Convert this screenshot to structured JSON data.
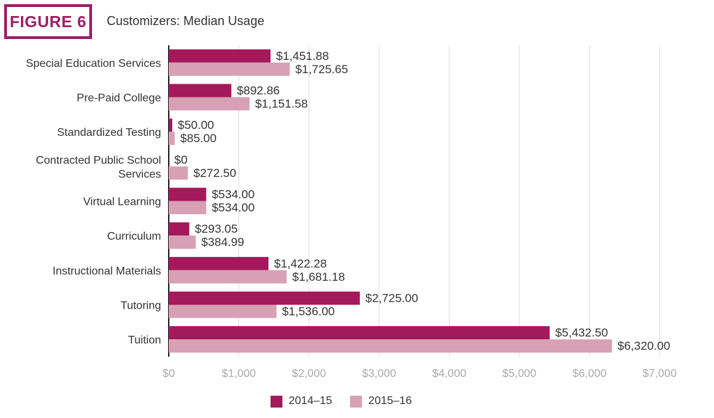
{
  "figure": {
    "label": "FIGURE 6",
    "title": "Customizers: Median Usage"
  },
  "colors": {
    "accent": "#9e1e64",
    "series_2014": "#a3195b",
    "series_2015": "#d8a0b4",
    "gridline": "#dddddd",
    "tick_text": "#aaaaaa"
  },
  "chart_data": {
    "type": "bar",
    "orientation": "horizontal",
    "title": "Customizers: Median Usage",
    "categories": [
      [
        "Special Education Services"
      ],
      [
        "Pre-Paid College"
      ],
      [
        "Standardized Testing"
      ],
      [
        "Contracted Public School",
        "Services"
      ],
      [
        "Virtual Learning"
      ],
      [
        "Curriculum"
      ],
      [
        "Instructional Materials"
      ],
      [
        "Tutoring"
      ],
      [
        "Tuition"
      ]
    ],
    "series": [
      {
        "name": "2014–15",
        "values": [
          1451.88,
          892.86,
          50,
          0,
          534,
          293.05,
          1422.28,
          2725,
          5432.5
        ],
        "labels": [
          "$1,451.88",
          "$892.86",
          "$50.00",
          "$0",
          "$534.00",
          "$293.05",
          "$1,422.28",
          "$2,725.00",
          "$5,432.50"
        ]
      },
      {
        "name": "2015–16",
        "values": [
          1725.65,
          1151.58,
          85,
          272.5,
          534,
          384.99,
          1681.18,
          1536,
          6320
        ],
        "labels": [
          "$1,725.65",
          "$1,151.58",
          "$85.00",
          "$272.50",
          "$534.00",
          "$384.99",
          "$1,681.18",
          "$1,536.00",
          "$6,320.00"
        ]
      }
    ],
    "xlim": [
      0,
      7000
    ],
    "xticks": [
      0,
      1000,
      2000,
      3000,
      4000,
      5000,
      6000,
      7000
    ],
    "xtick_labels": [
      "$0",
      "$1,000",
      "$2,000",
      "$3,000",
      "$4,000",
      "$5,000",
      "$6,000",
      "$7,000"
    ],
    "xlabel": "",
    "ylabel": "",
    "grid": "vertical",
    "legend": "bottom-center"
  }
}
